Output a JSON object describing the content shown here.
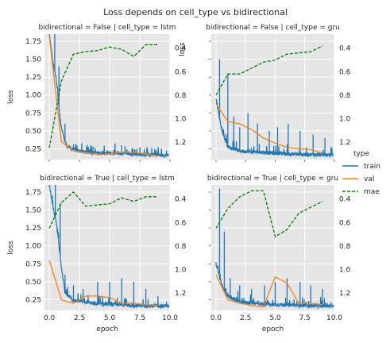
{
  "chart_data": {
    "type": "line",
    "title": "Loss depends on cell_type vs bidirectional",
    "xlabel": "epoch",
    "ylabel_left": "loss",
    "xlim": [
      -0.4,
      10.0
    ],
    "xticks": [
      "0.0",
      "2.5",
      "5.0",
      "7.5",
      "10.0"
    ],
    "ylim_left": [
      0.1,
      1.85
    ],
    "yticks_left": [
      "0.25",
      "0.50",
      "0.75",
      "1.00",
      "1.25",
      "1.50",
      "1.75"
    ],
    "ylim_right_inverted": [
      1.35,
      0.28
    ],
    "yticks_right": [
      "0.4",
      "0.6",
      "0.8",
      "1.0",
      "1.2"
    ],
    "grid": true,
    "legend_title": "type",
    "legend_position": "right",
    "series_styles": [
      {
        "name": "train",
        "color": "#1f77b4",
        "style": "solid"
      },
      {
        "name": "val",
        "color": "#ff7f0e",
        "style": "solid"
      },
      {
        "name": "mae",
        "color": "#008000",
        "style": "dashed"
      }
    ],
    "panels": [
      {
        "title": "bidirectional = False | cell_type = lstm",
        "train_profile": [
          [
            0.0,
            1.85
          ],
          [
            0.3,
            1.45
          ],
          [
            0.6,
            1.2
          ],
          [
            0.9,
            0.65
          ],
          [
            1.2,
            0.4
          ],
          [
            1.5,
            0.28
          ],
          [
            2.0,
            0.24
          ],
          [
            3.0,
            0.2
          ],
          [
            5.0,
            0.19
          ],
          [
            8.0,
            0.17
          ],
          [
            9.9,
            0.16
          ]
        ],
        "train_spikes": [
          [
            0.45,
            1.85
          ],
          [
            0.8,
            1.4
          ],
          [
            1.3,
            0.6
          ],
          [
            2.3,
            0.3
          ],
          [
            3.5,
            0.28
          ],
          [
            6.0,
            0.3
          ],
          [
            7.5,
            0.27
          ],
          [
            9.0,
            0.22
          ]
        ],
        "val": [
          [
            0,
            1.82
          ],
          [
            1,
            0.35
          ],
          [
            2,
            0.22
          ],
          [
            3,
            0.2
          ],
          [
            4,
            0.17
          ],
          [
            5,
            0.18
          ],
          [
            6,
            0.2
          ],
          [
            7,
            0.2
          ],
          [
            8,
            0.18
          ],
          [
            9,
            0.15
          ]
        ],
        "mae": [
          [
            0,
            1.25
          ],
          [
            1,
            0.68
          ],
          [
            2,
            0.45
          ],
          [
            3,
            0.43
          ],
          [
            4,
            0.42
          ],
          [
            5,
            0.39
          ],
          [
            6,
            0.41
          ],
          [
            7,
            0.47
          ],
          [
            8,
            0.37
          ],
          [
            9,
            0.37
          ]
        ]
      },
      {
        "title": "bidirectional = False | cell_type = gru",
        "train_profile": [
          [
            0.0,
            0.95
          ],
          [
            0.5,
            0.5
          ],
          [
            1.0,
            0.28
          ],
          [
            2.0,
            0.22
          ],
          [
            4.0,
            0.2
          ],
          [
            6.0,
            0.18
          ],
          [
            8.0,
            0.17
          ],
          [
            9.9,
            0.16
          ]
        ],
        "train_spikes": [
          [
            0.3,
            1.5
          ],
          [
            1.0,
            1.3
          ],
          [
            1.5,
            0.7
          ],
          [
            2.0,
            0.55
          ],
          [
            2.7,
            0.75
          ],
          [
            3.5,
            0.6
          ],
          [
            4.5,
            0.5
          ],
          [
            5.2,
            0.55
          ],
          [
            6.1,
            0.6
          ],
          [
            7.1,
            0.5
          ],
          [
            8.2,
            0.45
          ],
          [
            9.2,
            0.4
          ]
        ],
        "val": [
          [
            0,
            0.88
          ],
          [
            1,
            0.63
          ],
          [
            2,
            0.6
          ],
          [
            3,
            0.52
          ],
          [
            4,
            0.4
          ],
          [
            5,
            0.33
          ],
          [
            6,
            0.27
          ],
          [
            7,
            0.25
          ],
          [
            8,
            0.24
          ],
          [
            9,
            0.19
          ]
        ],
        "mae": [
          [
            0,
            0.8
          ],
          [
            1,
            0.62
          ],
          [
            2,
            0.62
          ],
          [
            3,
            0.57
          ],
          [
            4,
            0.52
          ],
          [
            5,
            0.5
          ],
          [
            6,
            0.45
          ],
          [
            7,
            0.44
          ],
          [
            8,
            0.43
          ],
          [
            9,
            0.38
          ]
        ]
      },
      {
        "title": "bidirectional = True | cell_type = lstm",
        "train_profile": [
          [
            0.0,
            1.85
          ],
          [
            0.3,
            1.55
          ],
          [
            0.6,
            1.3
          ],
          [
            1.0,
            0.7
          ],
          [
            1.3,
            0.35
          ],
          [
            2.0,
            0.24
          ],
          [
            4.0,
            0.19
          ],
          [
            7.0,
            0.17
          ],
          [
            9.9,
            0.16
          ]
        ],
        "train_spikes": [
          [
            0.5,
            1.85
          ],
          [
            0.9,
            1.6
          ],
          [
            1.3,
            0.6
          ],
          [
            2.0,
            0.45
          ],
          [
            2.8,
            0.4
          ],
          [
            4.0,
            0.5
          ],
          [
            5.0,
            0.5
          ],
          [
            6.0,
            0.55
          ],
          [
            7.0,
            0.5
          ],
          [
            8.0,
            0.4
          ],
          [
            9.0,
            0.3
          ]
        ],
        "val": [
          [
            0,
            0.8
          ],
          [
            1,
            0.25
          ],
          [
            2,
            0.2
          ],
          [
            3,
            0.3
          ],
          [
            4,
            0.3
          ],
          [
            5,
            0.28
          ],
          [
            6,
            0.2
          ],
          [
            7,
            0.2
          ],
          [
            8,
            0.18
          ],
          [
            9,
            0.17
          ]
        ],
        "mae": [
          [
            0,
            0.65
          ],
          [
            1,
            0.43
          ],
          [
            2,
            0.34
          ],
          [
            3,
            0.46
          ],
          [
            4,
            0.45
          ],
          [
            5,
            0.44
          ],
          [
            6,
            0.39
          ],
          [
            7,
            0.42
          ],
          [
            8,
            0.38
          ],
          [
            9,
            0.38
          ]
        ]
      },
      {
        "title": "bidirectional = True | cell_type = gru",
        "train_profile": [
          [
            0.0,
            0.75
          ],
          [
            0.5,
            0.45
          ],
          [
            1.0,
            0.3
          ],
          [
            2.0,
            0.22
          ],
          [
            4.0,
            0.19
          ],
          [
            7.0,
            0.17
          ],
          [
            9.9,
            0.16
          ]
        ],
        "train_spikes": [
          [
            0.3,
            1.8
          ],
          [
            0.7,
            1.2
          ],
          [
            1.2,
            0.55
          ],
          [
            2.0,
            0.45
          ],
          [
            3.0,
            0.4
          ],
          [
            4.1,
            0.45
          ],
          [
            5.0,
            0.5
          ],
          [
            6.0,
            0.55
          ],
          [
            7.1,
            0.5
          ],
          [
            8.0,
            0.45
          ],
          [
            9.0,
            0.4
          ]
        ],
        "val": [
          [
            0,
            0.6
          ],
          [
            1,
            0.25
          ],
          [
            2,
            0.2
          ],
          [
            3,
            0.17
          ],
          [
            4,
            0.15
          ],
          [
            5,
            0.57
          ],
          [
            6,
            0.48
          ],
          [
            7,
            0.2
          ],
          [
            8,
            0.2
          ],
          [
            9,
            0.18
          ]
        ],
        "mae": [
          [
            0,
            0.65
          ],
          [
            1,
            0.48
          ],
          [
            2,
            0.38
          ],
          [
            3,
            0.33
          ],
          [
            4,
            0.33
          ],
          [
            5,
            0.72
          ],
          [
            6,
            0.66
          ],
          [
            7,
            0.52
          ],
          [
            8,
            0.47
          ],
          [
            9,
            0.42
          ]
        ]
      }
    ]
  }
}
